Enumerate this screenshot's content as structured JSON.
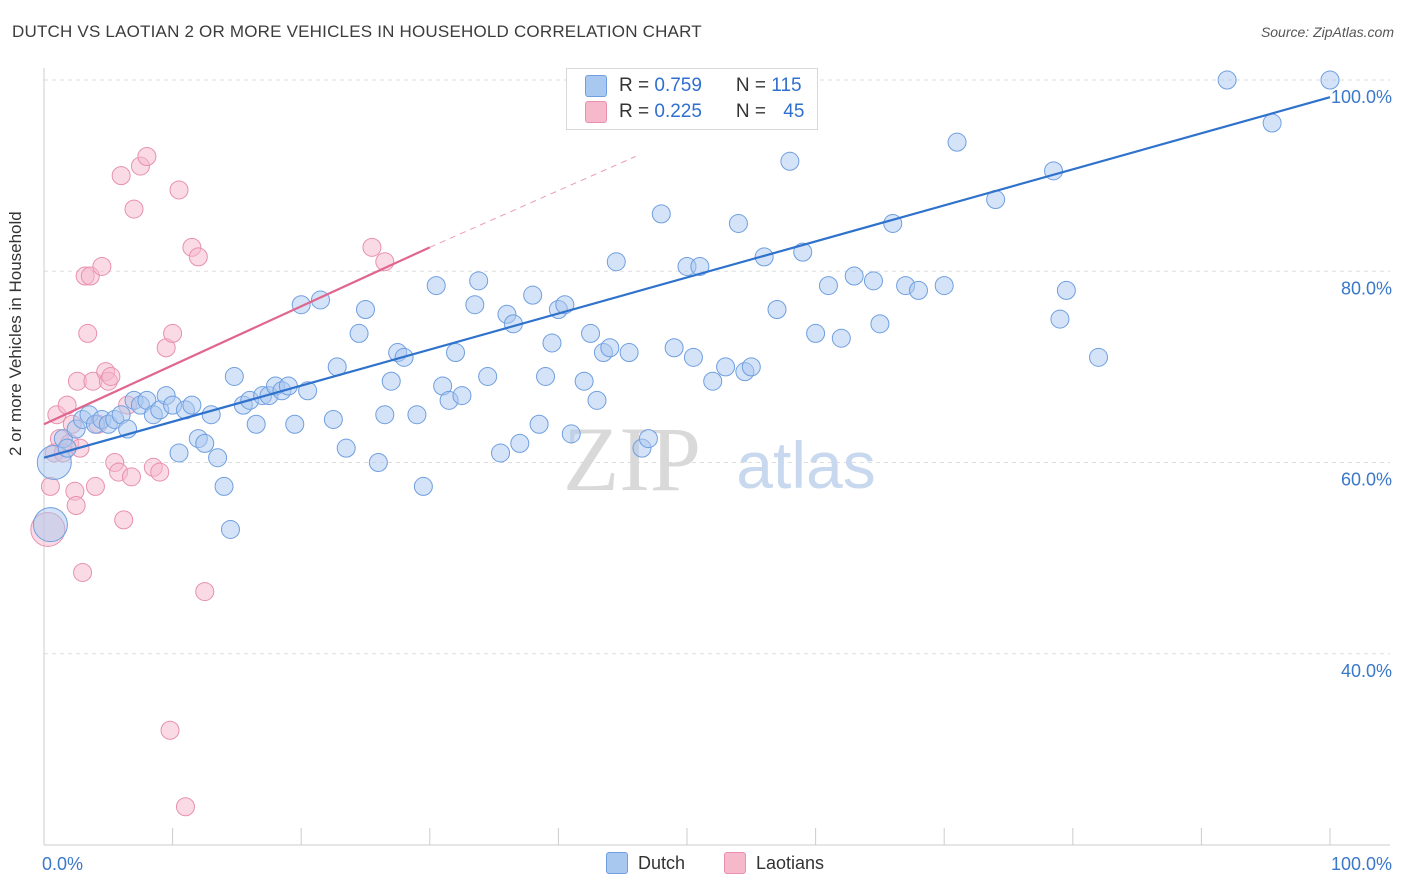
{
  "title": "DUTCH VS LAOTIAN 2 OR MORE VEHICLES IN HOUSEHOLD CORRELATION CHART",
  "source": "Source: ZipAtlas.com",
  "watermark": {
    "zip": "ZIP",
    "atlas": "atlas"
  },
  "legend": {
    "rows": [
      {
        "r_label": "R = ",
        "r_value": "0.759",
        "n_label": "N = ",
        "n_value": "115",
        "color": "#a9c8f0"
      },
      {
        "r_label": "R = ",
        "r_value": "0.225",
        "n_label": "N = ",
        "n_value": "45",
        "color": "#f6b8cb"
      }
    ]
  },
  "bottom_legend": [
    {
      "label": "Dutch",
      "color": "#a9c8f0"
    },
    {
      "label": "Laotians",
      "color": "#f6b8cb"
    }
  ],
  "chart_data": {
    "type": "scatter",
    "title": "DUTCH VS LAOTIAN 2 OR MORE VEHICLES IN HOUSEHOLD CORRELATION CHART",
    "xlabel": "",
    "ylabel": "2 or more Vehicles in Household",
    "xlim": [
      0,
      100
    ],
    "ylim": [
      22,
      102
    ],
    "x_tick_labels": [
      {
        "value": 0,
        "label": "0.0%"
      },
      {
        "value": 100,
        "label": "100.0%"
      }
    ],
    "y_tick_labels": [
      {
        "value": 40,
        "label": "40.0%"
      },
      {
        "value": 60,
        "label": "60.0%"
      },
      {
        "value": 80,
        "label": "80.0%"
      },
      {
        "value": 100,
        "label": "100.0%"
      }
    ],
    "grid": true,
    "series": [
      {
        "name": "Dutch",
        "color": "#6f9fe0",
        "fill": "#a9c8f0",
        "trend": {
          "x": [
            0,
            100
          ],
          "y": [
            60.5,
            98.2
          ],
          "color": "#2f72cc"
        },
        "points": [
          [
            0.5,
            53.5,
            "big"
          ],
          [
            0.8,
            60.0,
            "big"
          ],
          [
            1.5,
            62.5
          ],
          [
            1.8,
            61.5
          ],
          [
            2.5,
            63.5
          ],
          [
            3.0,
            64.5
          ],
          [
            3.5,
            65.0
          ],
          [
            4.0,
            64.0
          ],
          [
            4.5,
            64.5
          ],
          [
            5.0,
            64.0
          ],
          [
            5.5,
            64.5
          ],
          [
            6.0,
            65.0
          ],
          [
            6.5,
            63.5
          ],
          [
            7.0,
            66.5
          ],
          [
            7.5,
            66.0
          ],
          [
            8.0,
            66.5
          ],
          [
            8.5,
            65.0
          ],
          [
            9.0,
            65.5
          ],
          [
            9.5,
            67.0
          ],
          [
            10.0,
            66.0
          ],
          [
            10.5,
            61.0
          ],
          [
            11.0,
            65.5
          ],
          [
            11.5,
            66.0
          ],
          [
            12.0,
            62.5
          ],
          [
            12.5,
            62.0
          ],
          [
            13.0,
            65.0
          ],
          [
            13.5,
            60.5
          ],
          [
            14.0,
            57.5
          ],
          [
            14.5,
            53.0
          ],
          [
            14.8,
            69.0
          ],
          [
            15.5,
            66.0
          ],
          [
            16.0,
            66.5
          ],
          [
            16.5,
            64.0
          ],
          [
            17.0,
            67.0
          ],
          [
            17.5,
            67.0
          ],
          [
            18.0,
            68.0
          ],
          [
            18.5,
            67.5
          ],
          [
            19.0,
            68.0
          ],
          [
            19.5,
            64.0
          ],
          [
            20.0,
            76.5
          ],
          [
            20.5,
            67.5
          ],
          [
            21.5,
            77.0
          ],
          [
            22.5,
            64.5
          ],
          [
            22.8,
            70.0
          ],
          [
            23.5,
            61.5
          ],
          [
            24.5,
            73.5
          ],
          [
            25.0,
            76.0
          ],
          [
            26.0,
            60.0
          ],
          [
            26.5,
            65.0
          ],
          [
            27.0,
            68.5
          ],
          [
            27.5,
            71.5
          ],
          [
            28.0,
            71.0
          ],
          [
            29.0,
            65.0
          ],
          [
            29.5,
            57.5
          ],
          [
            30.5,
            78.5
          ],
          [
            31.0,
            68.0
          ],
          [
            31.5,
            66.5
          ],
          [
            32.0,
            71.5
          ],
          [
            32.5,
            67.0
          ],
          [
            33.5,
            76.5
          ],
          [
            33.8,
            79.0
          ],
          [
            34.5,
            69.0
          ],
          [
            35.5,
            61.0
          ],
          [
            36.0,
            75.5
          ],
          [
            36.5,
            74.5
          ],
          [
            37.0,
            62.0
          ],
          [
            38.0,
            77.5
          ],
          [
            38.5,
            64.0
          ],
          [
            39.0,
            69.0
          ],
          [
            39.5,
            72.5
          ],
          [
            40.0,
            76.0
          ],
          [
            40.5,
            76.5
          ],
          [
            41.0,
            63.0
          ],
          [
            42.0,
            68.5
          ],
          [
            42.5,
            73.5
          ],
          [
            43.0,
            66.5
          ],
          [
            43.5,
            71.5
          ],
          [
            44.0,
            72.0
          ],
          [
            44.5,
            81.0
          ],
          [
            45.5,
            71.5
          ],
          [
            46.5,
            61.5
          ],
          [
            47.0,
            62.5
          ],
          [
            47.5,
            96.5
          ],
          [
            48.0,
            86.0
          ],
          [
            49.0,
            72.0
          ],
          [
            50.0,
            80.5
          ],
          [
            50.5,
            71.0
          ],
          [
            51.0,
            80.5
          ],
          [
            52.0,
            68.5
          ],
          [
            53.0,
            70.0
          ],
          [
            54.0,
            85.0
          ],
          [
            54.5,
            69.5
          ],
          [
            55.0,
            70.0
          ],
          [
            56.0,
            81.5
          ],
          [
            57.0,
            76.0
          ],
          [
            58.0,
            91.5
          ],
          [
            59.0,
            82.0
          ],
          [
            60.0,
            73.5
          ],
          [
            61.0,
            78.5
          ],
          [
            62.0,
            73.0
          ],
          [
            63.0,
            79.5
          ],
          [
            64.5,
            79.0
          ],
          [
            65.0,
            74.5
          ],
          [
            66.0,
            85.0
          ],
          [
            67.0,
            78.5
          ],
          [
            68.0,
            78.0
          ],
          [
            70.0,
            78.5
          ],
          [
            71.0,
            93.5
          ],
          [
            74.0,
            87.5
          ],
          [
            78.5,
            90.5
          ],
          [
            79.0,
            75.0
          ],
          [
            79.5,
            78.0
          ],
          [
            82.0,
            71.0
          ],
          [
            92.0,
            100.0
          ],
          [
            95.5,
            95.5
          ],
          [
            100.0,
            100.0
          ]
        ]
      },
      {
        "name": "Laotians",
        "color": "#e890ad",
        "fill": "#f6b8cb",
        "trend": {
          "x": [
            0,
            30
          ],
          "y": [
            64.0,
            82.5
          ],
          "color": "#e0668f"
        },
        "trend_ext": {
          "x": [
            30,
            46
          ],
          "y": [
            82.5,
            92.0
          ],
          "color": "#ec9cb6"
        },
        "points": [
          [
            0.3,
            53.0,
            "big"
          ],
          [
            0.5,
            57.5
          ],
          [
            0.8,
            61.0
          ],
          [
            1.0,
            65.0
          ],
          [
            1.2,
            62.5
          ],
          [
            1.5,
            61.0
          ],
          [
            1.8,
            66.0
          ],
          [
            2.0,
            62.0
          ],
          [
            2.2,
            64.0
          ],
          [
            2.4,
            57.0
          ],
          [
            2.6,
            68.5
          ],
          [
            2.8,
            61.5
          ],
          [
            3.0,
            48.5
          ],
          [
            3.2,
            79.5
          ],
          [
            3.4,
            73.5
          ],
          [
            3.6,
            79.5
          ],
          [
            3.8,
            68.5
          ],
          [
            4.0,
            57.5
          ],
          [
            4.2,
            64.0
          ],
          [
            4.5,
            80.5
          ],
          [
            4.8,
            69.5
          ],
          [
            5.0,
            68.5
          ],
          [
            5.2,
            69.0
          ],
          [
            5.5,
            60.0
          ],
          [
            5.8,
            59.0
          ],
          [
            6.0,
            90.0
          ],
          [
            6.2,
            54.0
          ],
          [
            6.5,
            66.0
          ],
          [
            6.8,
            58.5
          ],
          [
            7.0,
            86.5
          ],
          [
            7.5,
            91.0
          ],
          [
            8.0,
            92.0
          ],
          [
            8.5,
            59.5
          ],
          [
            9.0,
            59.0
          ],
          [
            9.5,
            72.0
          ],
          [
            9.8,
            32.0
          ],
          [
            10.0,
            73.5
          ],
          [
            10.5,
            88.5
          ],
          [
            11.0,
            24.0
          ],
          [
            11.5,
            82.5
          ],
          [
            12.0,
            81.5
          ],
          [
            12.5,
            46.5
          ],
          [
            25.5,
            82.5
          ],
          [
            26.5,
            81.0
          ],
          [
            2.5,
            55.5
          ]
        ]
      }
    ]
  }
}
